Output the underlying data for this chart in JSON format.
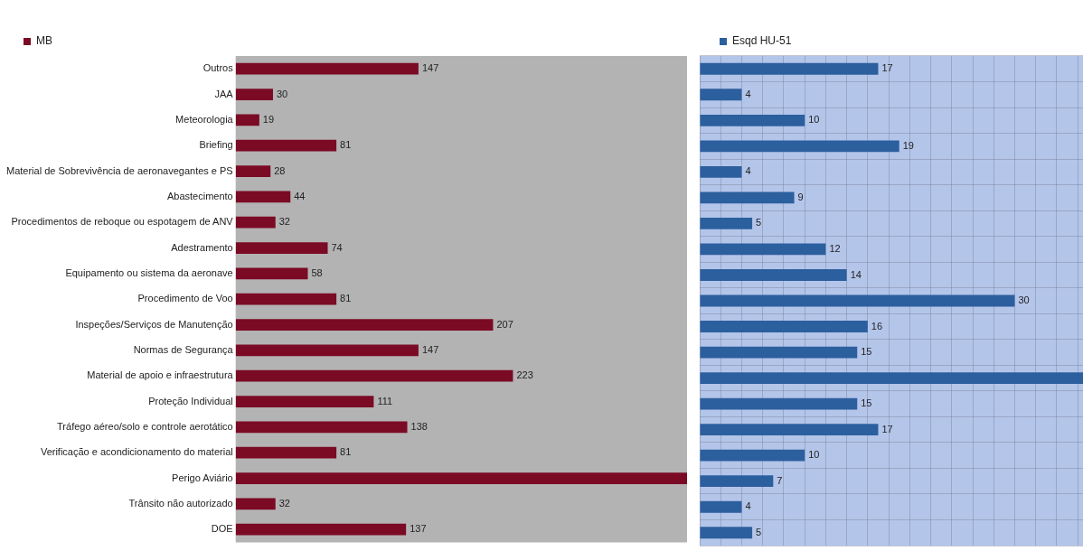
{
  "chart_data": [
    {
      "type": "bar",
      "orientation": "horizontal",
      "categories": [
        "Outros",
        "JAA",
        "Meteorologia",
        "Briefing",
        "Material de Sobrevivência de aeronavegantes e PS",
        "Abastecimento",
        "Procedimentos de reboque ou espotagem de ANV",
        "Adestramento",
        "Equipamento ou sistema da aeronave",
        "Procedimento de Voo",
        "Inspeções/Serviços de Manutenção",
        "Normas de Segurança",
        "Material de apoio e infraestrutura",
        "Proteção Individual",
        "Tráfego aéreo/solo e controle aerotático",
        "Verificação e acondicionamento do material",
        "Perigo Aviário",
        "Trânsito não autorizado",
        "DOE"
      ],
      "series": [
        {
          "name": "MB",
          "color": "#7b0a24",
          "values": [
            147,
            30,
            19,
            81,
            28,
            44,
            32,
            74,
            58,
            81,
            207,
            147,
            223,
            111,
            138,
            81,
            363,
            32,
            137
          ],
          "value_labels": [
            "147",
            "30",
            "19",
            "81",
            "28",
            "44",
            "32",
            "74",
            "58",
            "81",
            "207",
            "147",
            "223",
            "111",
            "138",
            "81",
            null,
            "32",
            "137"
          ]
        }
      ],
      "xlim": [
        0,
        363
      ],
      "legend": "top left",
      "tick_labels": "y"
    },
    {
      "type": "bar",
      "orientation": "horizontal",
      "categories": [
        null,
        null,
        null,
        null,
        null,
        null,
        null,
        null,
        null,
        null,
        null,
        null,
        null,
        null,
        null,
        null,
        null,
        null,
        null
      ],
      "series": [
        {
          "name": "Esqd HU-51",
          "color": "#2c5f9e",
          "values": [
            17,
            4,
            10,
            19,
            4,
            9,
            5,
            12,
            14,
            30,
            16,
            15,
            36.5,
            15,
            17,
            10,
            7,
            4,
            5
          ],
          "value_labels": [
            "17",
            "4",
            "10",
            "19",
            "4",
            "9",
            "5",
            "12",
            "14",
            "30",
            "16",
            "15",
            null,
            "15",
            "17",
            "10",
            "7",
            "4",
            "5"
          ]
        }
      ],
      "xlim": [
        0,
        36.5
      ],
      "xticks": [
        {
          "value": 0,
          "label": null
        },
        {
          "value": 2,
          "label": null
        },
        {
          "value": 4,
          "label": null
        },
        {
          "value": 6,
          "label": null
        },
        {
          "value": 8,
          "label": null
        },
        {
          "value": 10,
          "label": null
        },
        {
          "value": 12,
          "label": null
        },
        {
          "value": 14,
          "label": null
        },
        {
          "value": 16,
          "label": null
        },
        {
          "value": 18,
          "label": null
        },
        {
          "value": 20,
          "label": null
        },
        {
          "value": 22,
          "label": null
        },
        {
          "value": 24,
          "label": null
        },
        {
          "value": 26,
          "label": null
        },
        {
          "value": 28,
          "label": null
        },
        {
          "value": 30,
          "label": null
        },
        {
          "value": 32,
          "label": null
        },
        {
          "value": 34,
          "label": null
        },
        {
          "value": 36,
          "label": null
        }
      ],
      "grid": true,
      "legend": "top left",
      "tick_labels": false
    }
  ]
}
